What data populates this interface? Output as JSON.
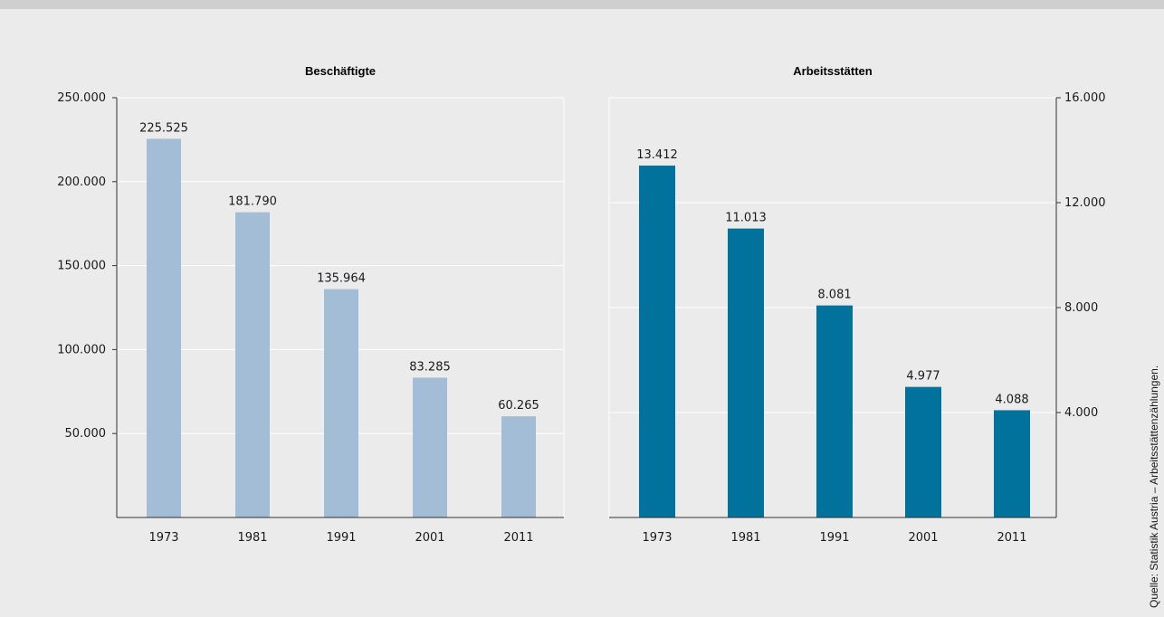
{
  "source_note": "Quelle: Statistik Austria – Arbeitsstättenzählungen.",
  "chart_data": [
    {
      "type": "bar",
      "title": "Beschäftigte",
      "categories": [
        "1973",
        "1981",
        "1991",
        "2001",
        "2011"
      ],
      "values": [
        225525,
        181790,
        135964,
        83285,
        60265
      ],
      "data_labels": [
        "225.525",
        "181.790",
        "135.964",
        "83.285",
        "60.265"
      ],
      "ylim": [
        0,
        250000
      ],
      "yticks": [
        50000,
        100000,
        150000,
        200000,
        250000
      ],
      "ytick_labels": [
        "50.000",
        "100.000",
        "150.000",
        "200.000",
        "250.000"
      ],
      "axis_side": "left",
      "grid": true,
      "color": "#a3bdd6"
    },
    {
      "type": "bar",
      "title": "Arbeitsstätten",
      "categories": [
        "1973",
        "1981",
        "1991",
        "2001",
        "2011"
      ],
      "values": [
        13412,
        11013,
        8081,
        4977,
        4088
      ],
      "data_labels": [
        "13.412",
        "11.013",
        "8.081",
        "4.977",
        "4.088"
      ],
      "ylim": [
        0,
        16000
      ],
      "yticks": [
        4000,
        8000,
        12000,
        16000
      ],
      "ytick_labels": [
        "4.000",
        "8.000",
        "12.000",
        "16.000"
      ],
      "axis_side": "right",
      "grid": true,
      "color": "#00729c"
    }
  ]
}
